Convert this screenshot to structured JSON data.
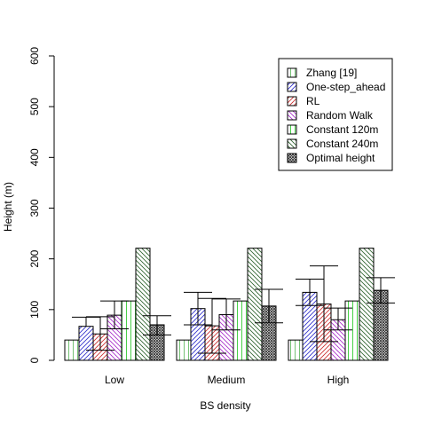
{
  "chart_data": {
    "type": "bar",
    "title": "",
    "xlabel": "BS density",
    "ylabel": "Height (m)",
    "ylim": [
      0,
      600
    ],
    "yticks": [
      0,
      100,
      200,
      300,
      400,
      500,
      600
    ],
    "grid": false,
    "legend_position": "top-right",
    "categories": [
      "Low",
      "Medium",
      "High"
    ],
    "series": [
      {
        "name": "Zhang [19]",
        "values": [
          40,
          40,
          40
        ],
        "err_low": [
          null,
          null,
          null
        ],
        "err_high": [
          null,
          null,
          null
        ],
        "color": "#66bb66",
        "pattern": "vertical"
      },
      {
        "name": "One-step_ahead",
        "values": [
          67,
          102,
          134
        ],
        "err_low": [
          null,
          70,
          108
        ],
        "err_high": [
          85,
          134,
          160
        ],
        "color": "#3333cc",
        "pattern": "diag-up"
      },
      {
        "name": "RL",
        "values": [
          52,
          68,
          111
        ],
        "err_low": [
          20,
          14,
          37
        ],
        "err_high": [
          86,
          122,
          186
        ],
        "color": "#cc3333",
        "pattern": "diag-up"
      },
      {
        "name": "Random Walk",
        "values": [
          89,
          90,
          80
        ],
        "err_low": [
          62,
          60,
          60
        ],
        "err_high": [
          117,
          121,
          103
        ],
        "color": "#aa33cc",
        "pattern": "diag-down"
      },
      {
        "name": "Constant 120m",
        "values": [
          117,
          117,
          117
        ],
        "err_low": [
          null,
          null,
          null
        ],
        "err_high": [
          null,
          null,
          null
        ],
        "color": "#33cc33",
        "pattern": "vertical"
      },
      {
        "name": "Constant 240m",
        "values": [
          221,
          221,
          221
        ],
        "err_low": [
          null,
          null,
          null
        ],
        "err_high": [
          null,
          null,
          null
        ],
        "color": "#336633",
        "pattern": "diag-down"
      },
      {
        "name": "Optimal height",
        "values": [
          70,
          107,
          138
        ],
        "err_low": [
          50,
          74,
          113
        ],
        "err_high": [
          88,
          140,
          163
        ],
        "color": "#333333",
        "pattern": "cross"
      }
    ]
  }
}
